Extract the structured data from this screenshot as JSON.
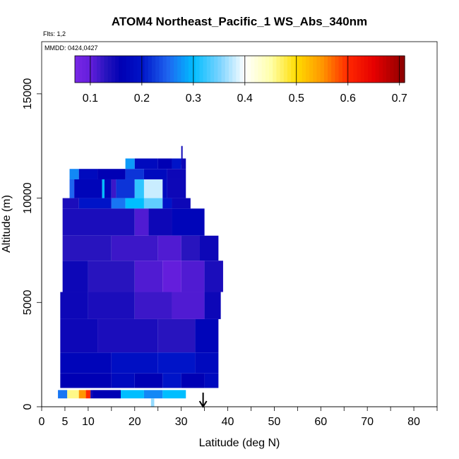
{
  "chart_data": {
    "type": "heatmap",
    "title": "ATOM4 Northeast_Pacific_1 WS_Abs_340nm",
    "flights_note": "Flts: 1,2",
    "date_note": "MMDD: 0424,0427",
    "xlabel": "Latitude (deg N)",
    "ylabel": "Altitude (m)",
    "xlim": [
      0,
      85
    ],
    "ylim": [
      0,
      17500
    ],
    "x_ticks": [
      0,
      5,
      10,
      20,
      30,
      40,
      50,
      60,
      70,
      80
    ],
    "x_tick_labels": [
      "0",
      "5",
      "10",
      "20",
      "30",
      "40",
      "50",
      "60",
      "70",
      "80"
    ],
    "x_minor_ticks": [
      15,
      25,
      35,
      45,
      55,
      65,
      75,
      85
    ],
    "y_ticks": [
      0,
      5000,
      10000,
      15000
    ],
    "y_tick_labels": [
      "0",
      "5000",
      "10000",
      "15000"
    ],
    "colorbar": {
      "min": 0.07,
      "max": 0.71,
      "ticks": [
        0.1,
        0.2,
        0.3,
        0.4,
        0.5,
        0.6,
        0.7
      ],
      "tick_labels": [
        "0.1",
        "0.2",
        "0.3",
        "0.4",
        "0.5",
        "0.6",
        "0.7"
      ]
    },
    "marker": {
      "latitude": 34.7,
      "symbol": "arrow"
    },
    "grid": false,
    "curtain": [
      {
        "alt": [
          11600,
          12500
        ],
        "segments": [
          [
            30,
            30.3,
            0.15
          ]
        ]
      },
      {
        "alt": [
          11400,
          11900
        ],
        "segments": [
          [
            18,
            20,
            0.28
          ],
          [
            20,
            25,
            0.18
          ],
          [
            25,
            28,
            0.16
          ],
          [
            28,
            30,
            0.2
          ],
          [
            30,
            31,
            0.15
          ]
        ]
      },
      {
        "alt": [
          10900,
          11400
        ],
        "segments": [
          [
            6,
            8,
            0.27
          ],
          [
            8,
            12,
            0.18
          ],
          [
            12,
            18,
            0.16
          ],
          [
            18,
            22,
            0.22
          ],
          [
            22,
            27,
            0.18
          ],
          [
            27,
            31,
            0.15
          ]
        ]
      },
      {
        "alt": [
          10000,
          10900
        ],
        "segments": [
          [
            6,
            7,
            0.25
          ],
          [
            7,
            13,
            0.17
          ],
          [
            13,
            13.5,
            0.3
          ],
          [
            13.5,
            15,
            0.17
          ],
          [
            15,
            16,
            0.12
          ],
          [
            16,
            20,
            0.22
          ],
          [
            20,
            22,
            0.32
          ],
          [
            22,
            26,
            0.38
          ],
          [
            26,
            27,
            0.18
          ],
          [
            27,
            31,
            0.15
          ]
        ]
      },
      {
        "alt": [
          9500,
          10000
        ],
        "segments": [
          [
            4.5,
            8,
            0.14
          ],
          [
            8,
            15,
            0.2
          ],
          [
            15,
            18,
            0.26
          ],
          [
            18,
            22,
            0.3
          ],
          [
            22,
            26,
            0.34
          ],
          [
            26,
            28,
            0.2
          ],
          [
            28,
            32,
            0.15
          ]
        ]
      },
      {
        "alt": [
          8200,
          9500
        ],
        "segments": [
          [
            4.5,
            20,
            0.14
          ],
          [
            20,
            23,
            0.11
          ],
          [
            23,
            28,
            0.15
          ],
          [
            28,
            35,
            0.17
          ]
        ]
      },
      {
        "alt": [
          7000,
          8200
        ],
        "segments": [
          [
            4.5,
            15,
            0.13
          ],
          [
            15,
            25,
            0.12
          ],
          [
            25,
            30,
            0.11
          ],
          [
            30,
            34,
            0.13
          ],
          [
            34,
            38,
            0.15
          ]
        ]
      },
      {
        "alt": [
          5500,
          7000
        ],
        "segments": [
          [
            4.5,
            10,
            0.15
          ],
          [
            10,
            20,
            0.13
          ],
          [
            20,
            26,
            0.11
          ],
          [
            26,
            30,
            0.1
          ],
          [
            30,
            35,
            0.11
          ],
          [
            35,
            39,
            0.14
          ]
        ]
      },
      {
        "alt": [
          4200,
          5500
        ],
        "segments": [
          [
            4,
            10,
            0.15
          ],
          [
            10,
            20,
            0.14
          ],
          [
            20,
            28,
            0.12
          ],
          [
            28,
            35,
            0.11
          ],
          [
            35,
            38.5,
            0.15
          ]
        ]
      },
      {
        "alt": [
          2600,
          4200
        ],
        "segments": [
          [
            4,
            12,
            0.15
          ],
          [
            12,
            25,
            0.14
          ],
          [
            25,
            33,
            0.13
          ],
          [
            33,
            38,
            0.17
          ]
        ]
      },
      {
        "alt": [
          1600,
          2600
        ],
        "segments": [
          [
            4,
            15,
            0.17
          ],
          [
            15,
            25,
            0.19
          ],
          [
            25,
            33,
            0.2
          ],
          [
            33,
            38,
            0.18
          ]
        ]
      },
      {
        "alt": [
          900,
          1600
        ],
        "segments": [
          [
            4,
            15,
            0.16
          ],
          [
            15,
            20,
            0.18
          ],
          [
            20,
            26,
            0.16
          ],
          [
            26,
            30,
            0.2
          ],
          [
            30,
            35,
            0.16
          ],
          [
            35,
            38,
            0.18
          ]
        ]
      },
      {
        "alt": [
          400,
          800
        ],
        "segments": [
          [
            3.5,
            5.5,
            0.26
          ],
          [
            5.5,
            8,
            0.46
          ],
          [
            8,
            9.5,
            0.55
          ],
          [
            9.5,
            10.5,
            0.6
          ],
          [
            10.5,
            11,
            0.15
          ],
          [
            11,
            17,
            0.16
          ],
          [
            17,
            22,
            0.3
          ],
          [
            22,
            26,
            0.27
          ],
          [
            26,
            31,
            0.3
          ]
        ]
      },
      {
        "alt": [
          0,
          400
        ],
        "segments": [
          [
            23.5,
            24.2,
            0.36
          ]
        ]
      }
    ]
  }
}
